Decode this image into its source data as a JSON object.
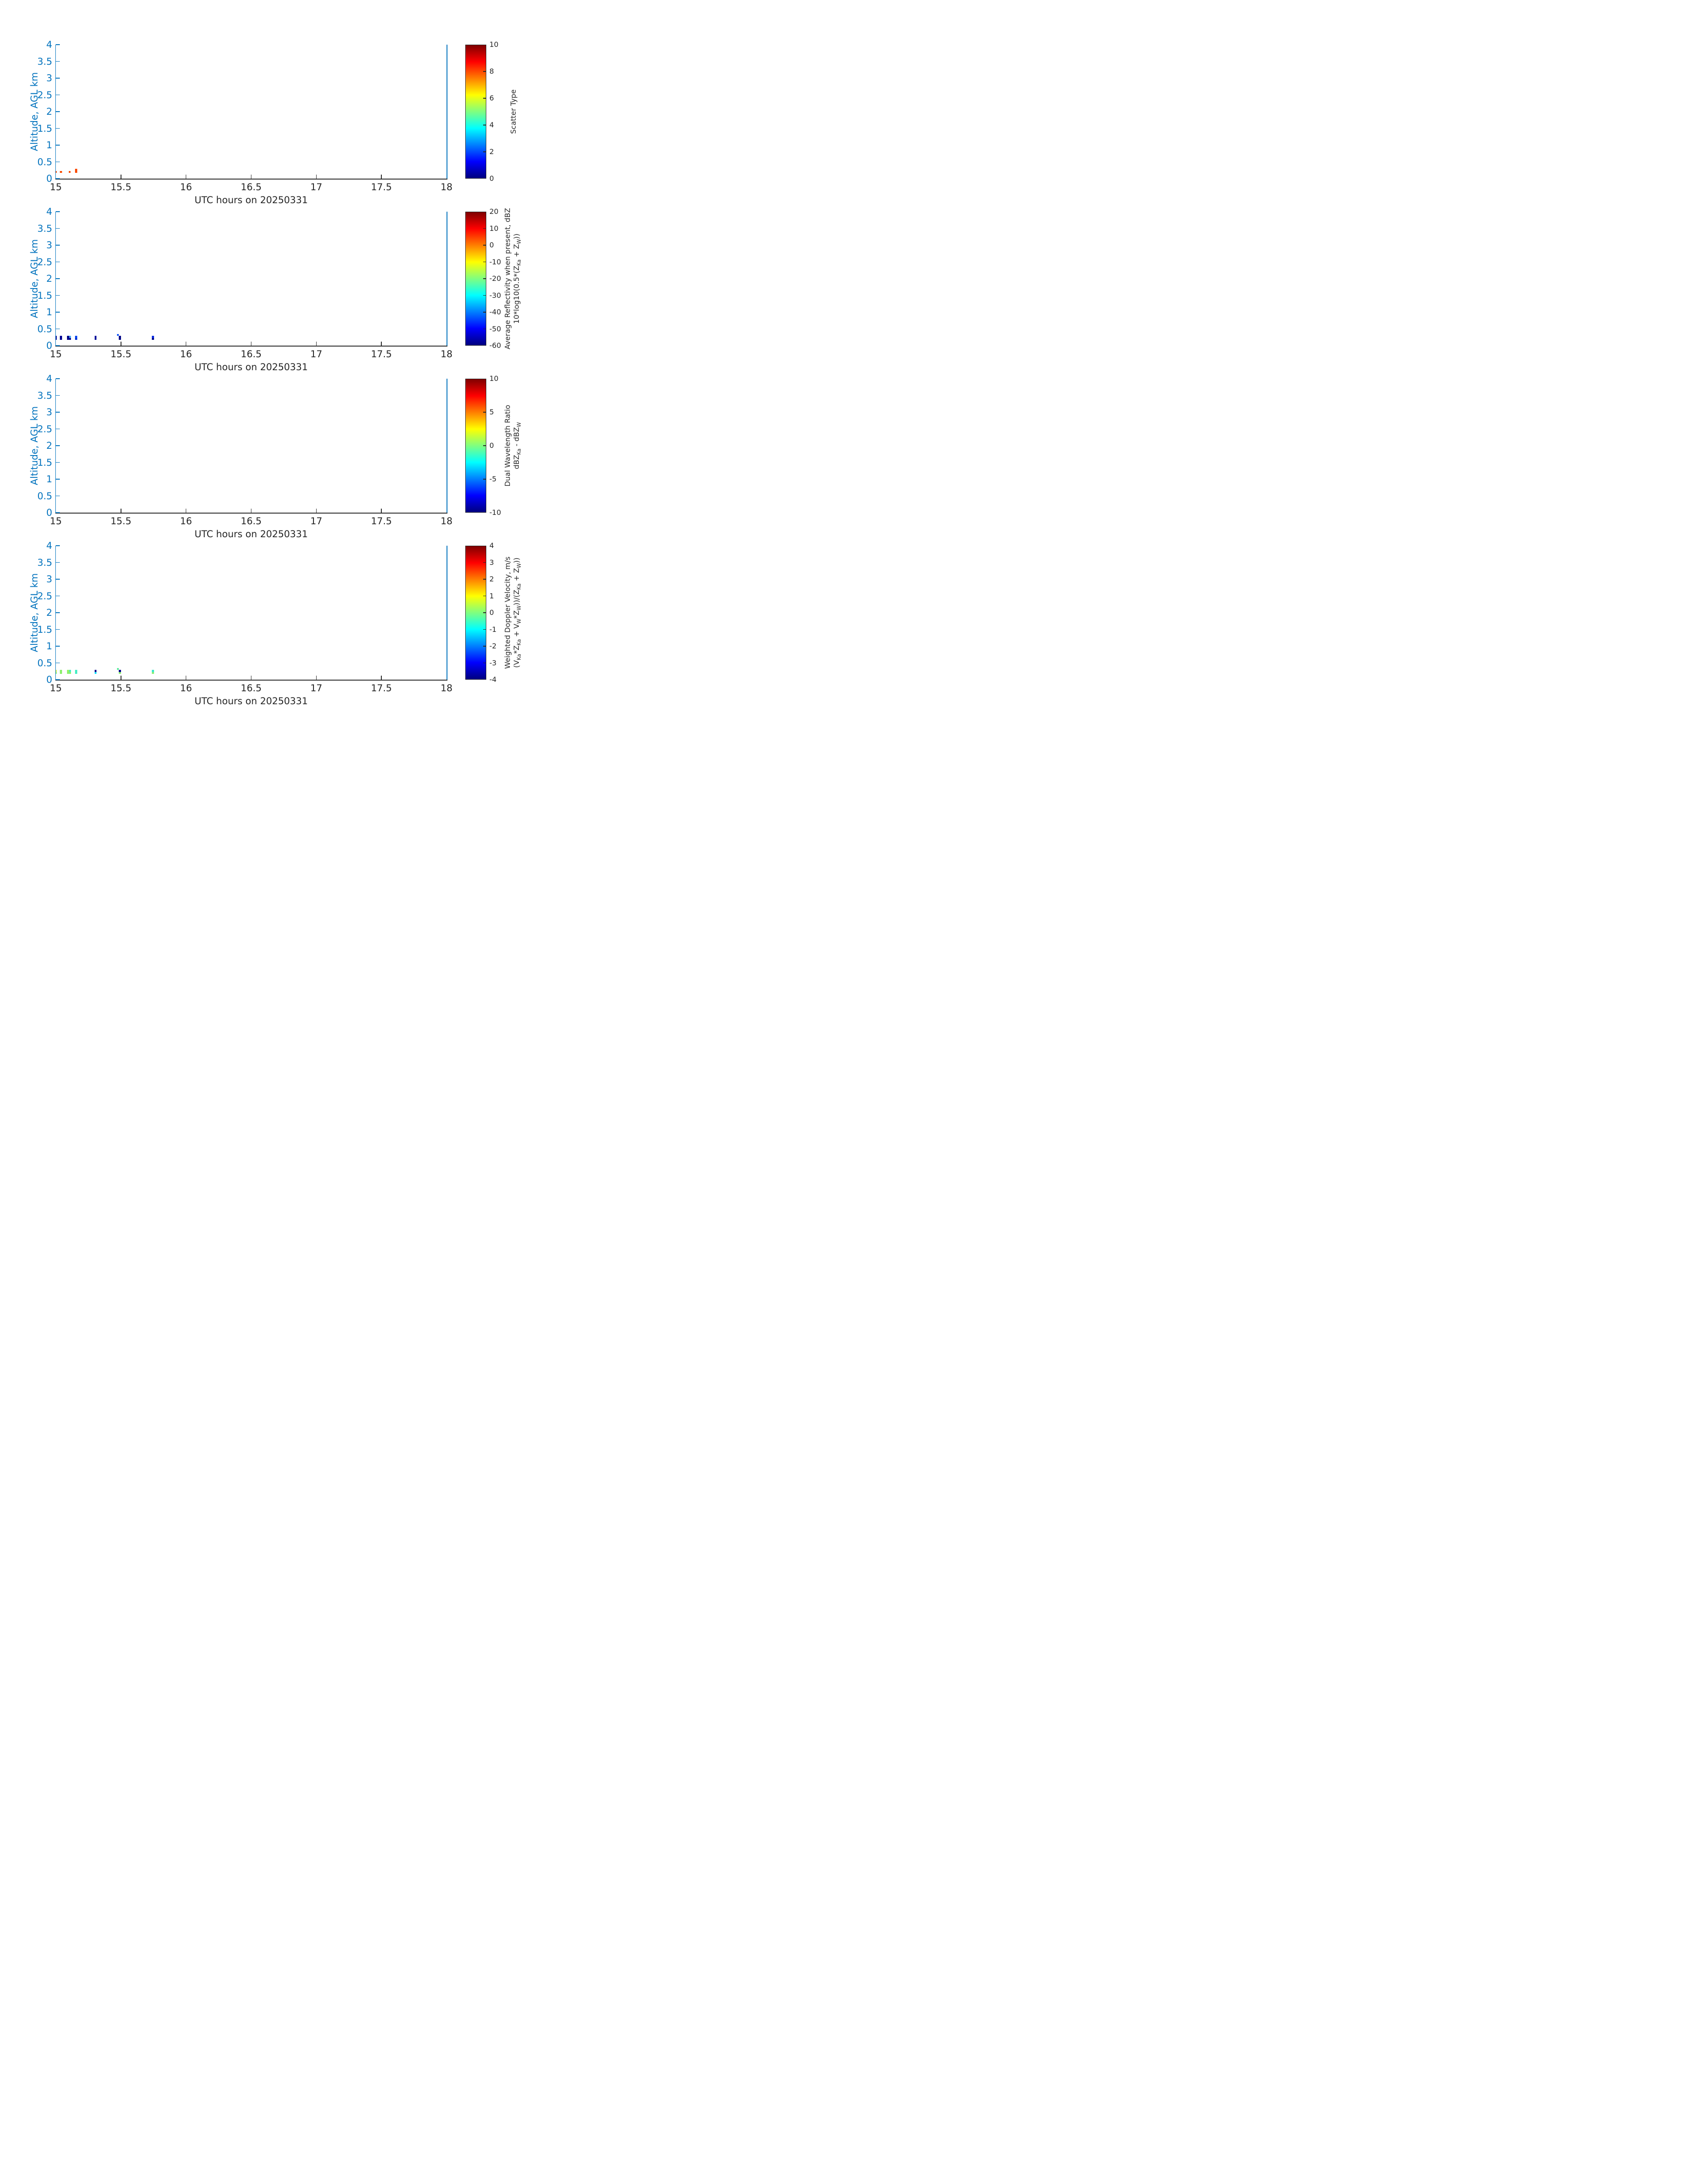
{
  "figure": {
    "background": "#ffffff",
    "axis_blue": "#0072BD",
    "axis_dark": "#262626",
    "jet_stops": [
      [
        0,
        "#00007F"
      ],
      [
        0.125,
        "#0000FF"
      ],
      [
        0.375,
        "#00FFFF"
      ],
      [
        0.625,
        "#FFFF00"
      ],
      [
        0.875,
        "#FF0000"
      ],
      [
        1,
        "#7F0000"
      ]
    ]
  },
  "chart_data": [
    {
      "type": "heatmap",
      "panel": "scatter-type",
      "title": "Scatter Type",
      "xlabel": "UTC hours on 20250331",
      "ylabel": "Altitude, AGL km",
      "xlim": [
        15,
        18
      ],
      "ylim": [
        0,
        4
      ],
      "x_ticks": [
        15,
        15.5,
        16,
        16.5,
        17,
        17.5,
        18
      ],
      "x_tick_labels": [
        "15",
        "15.5",
        "16",
        "16.5",
        "17",
        "17.5",
        "18"
      ],
      "y_ticks": [
        0,
        0.5,
        1,
        1.5,
        2,
        2.5,
        3,
        3.5,
        4
      ],
      "y_tick_labels": [
        "0",
        "0.5",
        "1",
        "1.5",
        "2",
        "2.5",
        "3",
        "3.5",
        "4"
      ],
      "colorbar": {
        "min": 0,
        "max": 10,
        "ticks": [
          10,
          8,
          6,
          4,
          2,
          0
        ],
        "tick_labels": [
          "10",
          "8",
          "6",
          "4",
          "2",
          "0"
        ],
        "label_lines": [
          [
            [
              "t",
              "Scatter Type"
            ]
          ]
        ]
      },
      "cells": [
        {
          "x": 15.0,
          "w": 0.007,
          "y": 0.175,
          "h": 0.058,
          "c": "#FA4B00",
          "v": 8
        },
        {
          "x": 15.031,
          "w": 0.0165,
          "y": 0.175,
          "h": 0.058,
          "c": "#FA4B00",
          "v": 8
        },
        {
          "x": 15.098,
          "w": 0.0165,
          "y": 0.175,
          "h": 0.058,
          "c": "#FA4B00",
          "v": 8
        },
        {
          "x": 15.148,
          "w": 0.0165,
          "y": 0.175,
          "h": 0.116,
          "c": "#FA4B00",
          "v": 8
        }
      ]
    },
    {
      "type": "heatmap",
      "panel": "average-reflectivity",
      "title": "Average Reflectivity when present, dBZ 10*log10(0.5*(Z_Ka + Z_W))",
      "xlabel": "UTC hours on 20250331",
      "ylabel": "Altitude, AGL km",
      "xlim": [
        15,
        18
      ],
      "ylim": [
        0,
        4
      ],
      "x_ticks": [
        15,
        15.5,
        16,
        16.5,
        17,
        17.5,
        18
      ],
      "x_tick_labels": [
        "15",
        "15.5",
        "16",
        "16.5",
        "17",
        "17.5",
        "18"
      ],
      "y_ticks": [
        0,
        0.5,
        1,
        1.5,
        2,
        2.5,
        3,
        3.5,
        4
      ],
      "y_tick_labels": [
        "0",
        "0.5",
        "1",
        "1.5",
        "2",
        "2.5",
        "3",
        "3.5",
        "4"
      ],
      "colorbar": {
        "min": -60,
        "max": 20,
        "ticks": [
          20,
          10,
          0,
          -10,
          -20,
          -30,
          -40,
          -50,
          -60
        ],
        "tick_labels": [
          "20",
          "10",
          "0",
          "-10",
          "-20",
          "-30",
          "-40",
          "-50",
          "-60"
        ],
        "label_lines": [
          [
            [
              "t",
              "Average Reflectivity when present, dBZ"
            ]
          ],
          [
            [
              "t",
              "10*log10(0.5*(Z"
            ],
            [
              "s",
              "Ka"
            ],
            [
              "t",
              " + Z"
            ],
            [
              "s",
              "W"
            ],
            [
              "t",
              "))"
            ]
          ]
        ]
      },
      "cells": [
        {
          "x": 15.0,
          "w": 0.007,
          "y": 0.175,
          "h": 0.116,
          "c": "#000495",
          "v": -55
        },
        {
          "x": 15.031,
          "w": 0.0165,
          "y": 0.175,
          "h": 0.116,
          "c": "#000292",
          "v": -55
        },
        {
          "x": 15.085,
          "w": 0.0165,
          "y": 0.175,
          "h": 0.116,
          "c": "#000088",
          "v": -56
        },
        {
          "x": 15.102,
          "w": 0.0155,
          "y": 0.233,
          "h": 0.058,
          "c": "#45A5F2",
          "v": -37
        },
        {
          "x": 15.102,
          "w": 0.0155,
          "y": 0.175,
          "h": 0.058,
          "c": "#000088",
          "v": -56
        },
        {
          "x": 15.148,
          "w": 0.0165,
          "y": 0.233,
          "h": 0.058,
          "c": "#0547F0",
          "v": -45
        },
        {
          "x": 15.148,
          "w": 0.0165,
          "y": 0.175,
          "h": 0.058,
          "c": "#0232D2",
          "v": -48
        },
        {
          "x": 15.298,
          "w": 0.015,
          "y": 0.175,
          "h": 0.116,
          "c": "#000D9B",
          "v": -54
        },
        {
          "x": 15.468,
          "w": 0.015,
          "y": 0.291,
          "h": 0.058,
          "c": "#1255FA",
          "v": -43
        },
        {
          "x": 15.484,
          "w": 0.0155,
          "y": 0.175,
          "h": 0.116,
          "c": "#000788",
          "v": -56
        },
        {
          "x": 15.738,
          "w": 0.0155,
          "y": 0.233,
          "h": 0.058,
          "c": "#0A2AE0",
          "v": -47
        },
        {
          "x": 15.738,
          "w": 0.0155,
          "y": 0.175,
          "h": 0.058,
          "c": "#000A8C",
          "v": -55
        }
      ]
    },
    {
      "type": "heatmap",
      "panel": "dual-wavelength-ratio",
      "title": "Dual Wavelength Ratio dBZ_Ka - dBZ_W",
      "xlabel": "UTC hours on 20250331",
      "ylabel": "Altitude, AGL km",
      "xlim": [
        15,
        18
      ],
      "ylim": [
        0,
        4
      ],
      "x_ticks": [
        15,
        15.5,
        16,
        16.5,
        17,
        17.5,
        18
      ],
      "x_tick_labels": [
        "15",
        "15.5",
        "16",
        "16.5",
        "17",
        "17.5",
        "18"
      ],
      "y_ticks": [
        0,
        0.5,
        1,
        1.5,
        2,
        2.5,
        3,
        3.5,
        4
      ],
      "y_tick_labels": [
        "0",
        "0.5",
        "1",
        "1.5",
        "2",
        "2.5",
        "3",
        "3.5",
        "4"
      ],
      "colorbar": {
        "min": -10,
        "max": 10,
        "ticks": [
          10,
          5,
          0,
          -5,
          -10
        ],
        "tick_labels": [
          "10",
          "5",
          "0",
          "-5",
          "-10"
        ],
        "label_lines": [
          [
            [
              "t",
              "Dual Wavelength Ratio"
            ]
          ],
          [
            [
              "t",
              "dBZ"
            ],
            [
              "s",
              "Ka"
            ],
            [
              "t",
              " - dBZ"
            ],
            [
              "s",
              "W"
            ]
          ]
        ]
      },
      "cells": []
    },
    {
      "type": "heatmap",
      "panel": "weighted-doppler-velocity",
      "title": "Weighted Doppler Velocity, m/s (V_Ka*Z_Ka + V_W*Z_W))/(Z_Ka + Z_W))",
      "xlabel": "UTC hours on 20250331",
      "ylabel": "Altitude, AGL km",
      "xlim": [
        15,
        18
      ],
      "ylim": [
        0,
        4
      ],
      "x_ticks": [
        15,
        15.5,
        16,
        16.5,
        17,
        17.5,
        18
      ],
      "x_tick_labels": [
        "15",
        "15.5",
        "16",
        "16.5",
        "17",
        "17.5",
        "18"
      ],
      "y_ticks": [
        0,
        0.5,
        1,
        1.5,
        2,
        2.5,
        3,
        3.5,
        4
      ],
      "y_tick_labels": [
        "0",
        "0.5",
        "1",
        "1.5",
        "2",
        "2.5",
        "3",
        "3.5",
        "4"
      ],
      "colorbar": {
        "min": -4,
        "max": 4,
        "ticks": [
          4,
          3,
          2,
          1,
          0,
          -1,
          -2,
          -3,
          -4
        ],
        "tick_labels": [
          "4",
          "3",
          "2",
          "1",
          "0",
          "-1",
          "-2",
          "-3",
          "-4"
        ],
        "label_lines": [
          [
            [
              "t",
              "Weighted Doppler Velocity, m/s"
            ]
          ],
          [
            [
              "t",
              "(V"
            ],
            [
              "s",
              "Ka"
            ],
            [
              "t",
              "*Z"
            ],
            [
              "s",
              "Ka"
            ],
            [
              "t",
              " + V"
            ],
            [
              "s",
              "W"
            ],
            [
              "t",
              "*Z"
            ],
            [
              "s",
              "W"
            ],
            [
              "t",
              "))/(Z"
            ],
            [
              "s",
              "Ka"
            ],
            [
              "t",
              " + Z"
            ],
            [
              "s",
              "W"
            ],
            [
              "t",
              "))"
            ]
          ]
        ]
      },
      "cells": [
        {
          "x": 15.0,
          "w": 0.007,
          "y": 0.233,
          "h": 0.058,
          "c": "#D6EE4E",
          "v": 0.4
        },
        {
          "x": 15.0,
          "w": 0.007,
          "y": 0.175,
          "h": 0.058,
          "c": "#8DF06E",
          "v": -0.2
        },
        {
          "x": 15.031,
          "w": 0.0165,
          "y": 0.175,
          "h": 0.116,
          "c": "#8DF06E",
          "v": -0.2
        },
        {
          "x": 15.085,
          "w": 0.0165,
          "y": 0.233,
          "h": 0.058,
          "c": "#9AF263",
          "v": -0.1
        },
        {
          "x": 15.102,
          "w": 0.0155,
          "y": 0.233,
          "h": 0.058,
          "c": "#43EDC6",
          "v": -1.0
        },
        {
          "x": 15.085,
          "w": 0.033,
          "y": 0.175,
          "h": 0.058,
          "c": "#8DF06E",
          "v": -0.2
        },
        {
          "x": 15.148,
          "w": 0.0165,
          "y": 0.175,
          "h": 0.116,
          "c": "#46EEC3",
          "v": -1.0
        },
        {
          "x": 15.298,
          "w": 0.015,
          "y": 0.233,
          "h": 0.058,
          "c": "#00008B",
          "v": -3.7
        },
        {
          "x": 15.298,
          "w": 0.015,
          "y": 0.175,
          "h": 0.058,
          "c": "#00E5FF",
          "v": -1.4
        },
        {
          "x": 15.468,
          "w": 0.015,
          "y": 0.291,
          "h": 0.058,
          "c": "#5BEE9C",
          "v": -0.4
        },
        {
          "x": 15.484,
          "w": 0.0155,
          "y": 0.233,
          "h": 0.058,
          "c": "#00038B",
          "v": -3.7
        },
        {
          "x": 15.484,
          "w": 0.0155,
          "y": 0.175,
          "h": 0.058,
          "c": "#8DF06E",
          "v": -0.2
        },
        {
          "x": 15.738,
          "w": 0.0155,
          "y": 0.233,
          "h": 0.058,
          "c": "#3DE8C8",
          "v": -1.1
        },
        {
          "x": 15.738,
          "w": 0.0155,
          "y": 0.175,
          "h": 0.058,
          "c": "#8BEE77",
          "v": -0.2
        }
      ]
    }
  ]
}
